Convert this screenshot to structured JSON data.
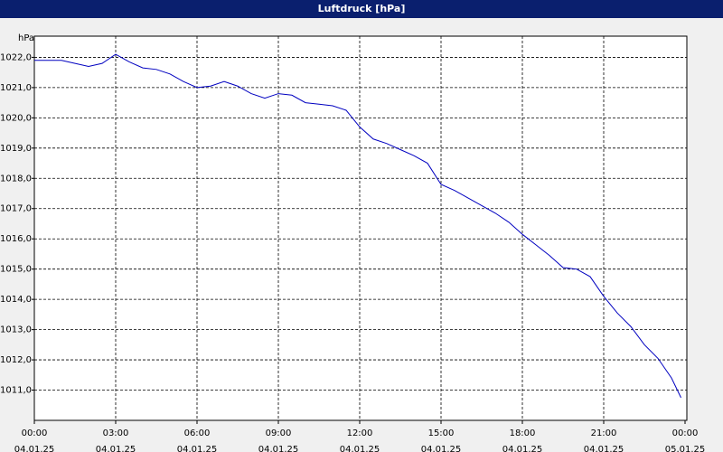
{
  "chart_data": {
    "type": "line",
    "title": "Luftdruck [hPa]",
    "y_unit": "hPa",
    "x": [
      0,
      1,
      1.5,
      2,
      2.5,
      3,
      3.5,
      4,
      4.5,
      5,
      5.5,
      6,
      6.5,
      7,
      7.5,
      8,
      8.5,
      9,
      9.5,
      10,
      10.5,
      11,
      11.5,
      12,
      12.5,
      13,
      13.5,
      14,
      14.5,
      15,
      15.5,
      16,
      16.5,
      17,
      17.5,
      18,
      18.5,
      19,
      19.5,
      20,
      20.5,
      21,
      21.5,
      22,
      22.5,
      23,
      23.5,
      23.85
    ],
    "series": [
      {
        "name": "Luftdruck",
        "color": "#0000c0",
        "values": [
          1021.9,
          1021.9,
          1021.8,
          1021.7,
          1021.8,
          1022.1,
          1021.85,
          1021.65,
          1021.6,
          1021.45,
          1021.2,
          1021.0,
          1021.05,
          1021.2,
          1021.05,
          1020.8,
          1020.65,
          1020.8,
          1020.75,
          1020.5,
          1020.45,
          1020.4,
          1020.25,
          1019.7,
          1019.3,
          1019.15,
          1018.95,
          1018.75,
          1018.5,
          1017.8,
          1017.6,
          1017.35,
          1017.1,
          1016.85,
          1016.55,
          1016.15,
          1015.8,
          1015.45,
          1015.05,
          1015.0,
          1014.75,
          1014.1,
          1013.55,
          1013.1,
          1012.5,
          1012.05,
          1011.4,
          1010.75
        ]
      }
    ],
    "xlim": [
      0,
      24
    ],
    "xticks": [
      {
        "value": 0,
        "label": "00:00",
        "date": "04.01.25"
      },
      {
        "value": 3,
        "label": "03:00",
        "date": "04.01.25"
      },
      {
        "value": 6,
        "label": "06:00",
        "date": "04.01.25"
      },
      {
        "value": 9,
        "label": "09:00",
        "date": "04.01.25"
      },
      {
        "value": 12,
        "label": "12:00",
        "date": "04.01.25"
      },
      {
        "value": 15,
        "label": "15:00",
        "date": "04.01.25"
      },
      {
        "value": 18,
        "label": "18:00",
        "date": "04.01.25"
      },
      {
        "value": 21,
        "label": "21:00",
        "date": "04.01.25"
      },
      {
        "value": 24,
        "label": "00:00",
        "date": "05.01.25"
      }
    ],
    "ylim": [
      1010,
      1022.7
    ],
    "yticks": [
      {
        "value": 1011,
        "label": "1011,0"
      },
      {
        "value": 1012,
        "label": "1012,0"
      },
      {
        "value": 1013,
        "label": "1013,0"
      },
      {
        "value": 1014,
        "label": "1014,0"
      },
      {
        "value": 1015,
        "label": "1015,0"
      },
      {
        "value": 1016,
        "label": "1016,0"
      },
      {
        "value": 1017,
        "label": "1017,0"
      },
      {
        "value": 1018,
        "label": "1018,0"
      },
      {
        "value": 1019,
        "label": "1019,0"
      },
      {
        "value": 1020,
        "label": "1020,0"
      },
      {
        "value": 1021,
        "label": "1021,0"
      },
      {
        "value": 1022,
        "label": "1022,0"
      }
    ],
    "grid": true
  }
}
